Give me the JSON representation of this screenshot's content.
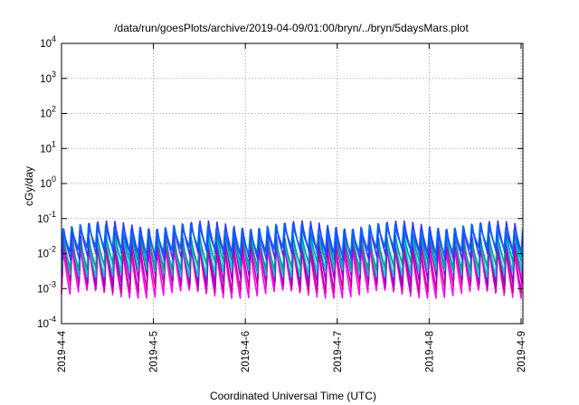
{
  "chart_data": {
    "type": "line",
    "title": "/data/run/goesPlots/archive/2019-04-09/01:00/bryn/../bryn/5daysMars.plot",
    "xlabel": "Coordinated Universal Time (UTC)",
    "ylabel": "cGy/day",
    "yscale": "log",
    "ylim_exponents": [
      -4,
      4
    ],
    "y_ticks": [
      {
        "base": "10",
        "exp": "-4"
      },
      {
        "base": "10",
        "exp": "-3"
      },
      {
        "base": "10",
        "exp": "-2"
      },
      {
        "base": "10",
        "exp": "-1"
      },
      {
        "base": "10",
        "exp": "0"
      },
      {
        "base": "10",
        "exp": "1"
      },
      {
        "base": "10",
        "exp": "2"
      },
      {
        "base": "10",
        "exp": "3"
      },
      {
        "base": "10",
        "exp": "4"
      }
    ],
    "x_ticks": [
      "2019-4-4",
      "2019-4-5",
      "2019-4-6",
      "2019-4-7",
      "2019-4-8",
      "2019-4-9"
    ],
    "xlim_days": [
      0,
      5.02
    ],
    "grid": true,
    "legend": "none",
    "cycle_days": 0.0926,
    "series": [
      {
        "color": "#ff00ff",
        "peak": 0.018,
        "trough": 0.0007
      },
      {
        "color": "#cc0099",
        "peak": 0.022,
        "trough": 0.001
      },
      {
        "color": "#9900cc",
        "peak": 0.03,
        "trough": 0.0016
      },
      {
        "color": "#00cccc",
        "peak": 0.04,
        "trough": 0.0028
      },
      {
        "color": "#009999",
        "peak": 0.032,
        "trough": 0.0045
      },
      {
        "color": "#3333ff",
        "peak": 0.065,
        "trough": 0.0085
      },
      {
        "color": "#0066ff",
        "peak": 0.055,
        "trough": 0.012
      }
    ]
  }
}
